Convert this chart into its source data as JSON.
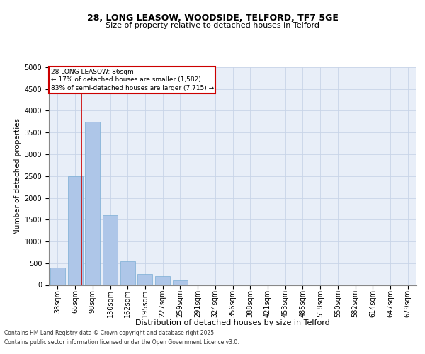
{
  "title_line1": "28, LONG LEASOW, WOODSIDE, TELFORD, TF7 5GE",
  "title_line2": "Size of property relative to detached houses in Telford",
  "xlabel": "Distribution of detached houses by size in Telford",
  "ylabel": "Number of detached properties",
  "categories": [
    "33sqm",
    "65sqm",
    "98sqm",
    "130sqm",
    "162sqm",
    "195sqm",
    "227sqm",
    "259sqm",
    "291sqm",
    "324sqm",
    "356sqm",
    "388sqm",
    "421sqm",
    "453sqm",
    "485sqm",
    "518sqm",
    "550sqm",
    "582sqm",
    "614sqm",
    "647sqm",
    "679sqm"
  ],
  "values": [
    400,
    2500,
    3750,
    1600,
    550,
    250,
    200,
    100,
    0,
    0,
    0,
    0,
    0,
    0,
    0,
    0,
    0,
    0,
    0,
    0,
    0
  ],
  "bar_color": "#aec6e8",
  "bar_edge_color": "#7aadd4",
  "grid_color": "#c8d4e8",
  "background_color": "#e8eef8",
  "vline_color": "#cc0000",
  "vline_x": 1.35,
  "ylim": [
    0,
    5000
  ],
  "yticks": [
    0,
    500,
    1000,
    1500,
    2000,
    2500,
    3000,
    3500,
    4000,
    4500,
    5000
  ],
  "annotation_title": "28 LONG LEASOW: 86sqm",
  "annotation_line2": "← 17% of detached houses are smaller (1,582)",
  "annotation_line3": "83% of semi-detached houses are larger (7,715) →",
  "annotation_box_color": "#cc0000",
  "footer_line1": "Contains HM Land Registry data © Crown copyright and database right 2025.",
  "footer_line2": "Contains public sector information licensed under the Open Government Licence v3.0.",
  "title1_fontsize": 9,
  "title2_fontsize": 8,
  "ylabel_fontsize": 7.5,
  "xlabel_fontsize": 8,
  "tick_fontsize": 7,
  "annot_fontsize": 6.5,
  "footer_fontsize": 5.5
}
